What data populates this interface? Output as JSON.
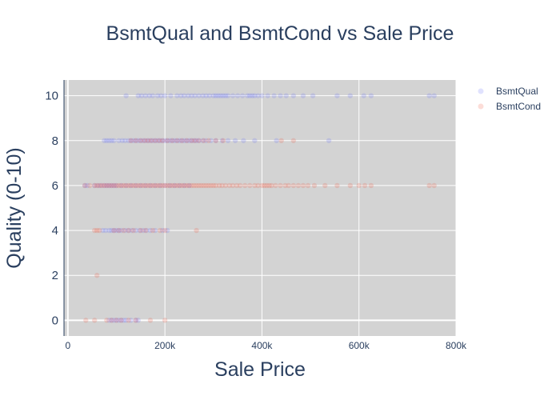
{
  "chart_data": {
    "type": "scatter",
    "title": "BsmtQual and BsmtCond vs Sale Price",
    "xlabel": "Sale Price",
    "ylabel": "Quality (0-10)",
    "xlim": [
      -8000,
      800000
    ],
    "ylim": [
      -0.7,
      10.7
    ],
    "x_ticks": [
      0,
      200000,
      400000,
      600000,
      800000
    ],
    "x_tick_labels": [
      "0",
      "200k",
      "400k",
      "600k",
      "800k"
    ],
    "y_ticks": [
      0,
      2,
      4,
      6,
      8,
      10
    ],
    "y_tick_labels": [
      "0",
      "2",
      "4",
      "6",
      "8",
      "10"
    ],
    "grid": true,
    "plot_background": "#d3d3d3",
    "legend_position": "top-right",
    "series": [
      {
        "name": "BsmtQual",
        "color": "#636efa",
        "opacity": 0.2,
        "points": [
          [
            120000,
            10
          ],
          [
            145000,
            10
          ],
          [
            152000,
            10
          ],
          [
            160000,
            10
          ],
          [
            168000,
            10
          ],
          [
            175000,
            10
          ],
          [
            185000,
            10
          ],
          [
            192000,
            10
          ],
          [
            200000,
            10
          ],
          [
            212000,
            10
          ],
          [
            225000,
            10
          ],
          [
            233000,
            10
          ],
          [
            240000,
            10
          ],
          [
            248000,
            10
          ],
          [
            255000,
            10
          ],
          [
            262000,
            10
          ],
          [
            270000,
            10
          ],
          [
            278000,
            10
          ],
          [
            285000,
            10
          ],
          [
            292000,
            10
          ],
          [
            300000,
            10
          ],
          [
            305000,
            10
          ],
          [
            310000,
            10
          ],
          [
            315000,
            10
          ],
          [
            320000,
            10
          ],
          [
            325000,
            10
          ],
          [
            330000,
            10
          ],
          [
            340000,
            10
          ],
          [
            350000,
            10
          ],
          [
            360000,
            10
          ],
          [
            370000,
            10
          ],
          [
            375000,
            10
          ],
          [
            380000,
            10
          ],
          [
            385000,
            10
          ],
          [
            392000,
            10
          ],
          [
            400000,
            10
          ],
          [
            412000,
            10
          ],
          [
            425000,
            10
          ],
          [
            438000,
            10
          ],
          [
            450000,
            10
          ],
          [
            465000,
            10
          ],
          [
            485000,
            10
          ],
          [
            505000,
            10
          ],
          [
            555000,
            10
          ],
          [
            582000,
            10
          ],
          [
            610000,
            10
          ],
          [
            625000,
            10
          ],
          [
            745000,
            10
          ],
          [
            755000,
            10
          ],
          [
            75000,
            8
          ],
          [
            80000,
            8
          ],
          [
            85000,
            8
          ],
          [
            90000,
            8
          ],
          [
            95000,
            8
          ],
          [
            105000,
            8
          ],
          [
            112000,
            8
          ],
          [
            118000,
            8
          ],
          [
            125000,
            8
          ],
          [
            130000,
            8
          ],
          [
            135000,
            8
          ],
          [
            140000,
            8
          ],
          [
            145000,
            8
          ],
          [
            150000,
            8
          ],
          [
            155000,
            8
          ],
          [
            160000,
            8
          ],
          [
            165000,
            8
          ],
          [
            170000,
            8
          ],
          [
            175000,
            8
          ],
          [
            180000,
            8
          ],
          [
            185000,
            8
          ],
          [
            190000,
            8
          ],
          [
            195000,
            8
          ],
          [
            200000,
            8
          ],
          [
            205000,
            8
          ],
          [
            210000,
            8
          ],
          [
            215000,
            8
          ],
          [
            220000,
            8
          ],
          [
            225000,
            8
          ],
          [
            230000,
            8
          ],
          [
            235000,
            8
          ],
          [
            240000,
            8
          ],
          [
            245000,
            8
          ],
          [
            250000,
            8
          ],
          [
            255000,
            8
          ],
          [
            260000,
            8
          ],
          [
            265000,
            8
          ],
          [
            270000,
            8
          ],
          [
            278000,
            8
          ],
          [
            285000,
            8
          ],
          [
            295000,
            8
          ],
          [
            305000,
            8
          ],
          [
            318000,
            8
          ],
          [
            330000,
            8
          ],
          [
            345000,
            8
          ],
          [
            362000,
            8
          ],
          [
            385000,
            8
          ],
          [
            430000,
            8
          ],
          [
            538000,
            8
          ],
          [
            35000,
            6
          ],
          [
            40000,
            6
          ],
          [
            55000,
            6
          ],
          [
            62000,
            6
          ],
          [
            68000,
            6
          ],
          [
            75000,
            6
          ],
          [
            80000,
            6
          ],
          [
            85000,
            6
          ],
          [
            90000,
            6
          ],
          [
            95000,
            6
          ],
          [
            100000,
            6
          ],
          [
            110000,
            6
          ],
          [
            120000,
            6
          ],
          [
            130000,
            6
          ],
          [
            140000,
            6
          ],
          [
            150000,
            6
          ],
          [
            160000,
            6
          ],
          [
            170000,
            6
          ],
          [
            180000,
            6
          ],
          [
            190000,
            6
          ],
          [
            200000,
            6
          ],
          [
            210000,
            6
          ],
          [
            220000,
            6
          ],
          [
            230000,
            6
          ],
          [
            240000,
            6
          ],
          [
            250000,
            6
          ],
          [
            72000,
            4
          ],
          [
            78000,
            4
          ],
          [
            85000,
            4
          ],
          [
            90000,
            4
          ],
          [
            95000,
            4
          ],
          [
            100000,
            4
          ],
          [
            105000,
            4
          ],
          [
            110000,
            4
          ],
          [
            118000,
            4
          ],
          [
            125000,
            4
          ],
          [
            132000,
            4
          ],
          [
            140000,
            4
          ],
          [
            148000,
            4
          ],
          [
            155000,
            4
          ],
          [
            162000,
            4
          ],
          [
            170000,
            4
          ],
          [
            180000,
            4
          ],
          [
            195000,
            4
          ],
          [
            205000,
            4
          ],
          [
            85000,
            0
          ],
          [
            90000,
            0
          ],
          [
            95000,
            0
          ],
          [
            100000,
            0
          ],
          [
            105000,
            0
          ],
          [
            110000,
            0
          ],
          [
            115000,
            0
          ],
          [
            120000,
            0
          ],
          [
            130000,
            0
          ],
          [
            140000,
            0
          ],
          [
            145000,
            0
          ]
        ]
      },
      {
        "name": "BsmtCond",
        "color": "#ef553b",
        "opacity": 0.2,
        "points": [
          [
            130000,
            8
          ],
          [
            140000,
            8
          ],
          [
            150000,
            8
          ],
          [
            158000,
            8
          ],
          [
            165000,
            8
          ],
          [
            172000,
            8
          ],
          [
            180000,
            8
          ],
          [
            188000,
            8
          ],
          [
            195000,
            8
          ],
          [
            205000,
            8
          ],
          [
            215000,
            8
          ],
          [
            225000,
            8
          ],
          [
            235000,
            8
          ],
          [
            245000,
            8
          ],
          [
            255000,
            8
          ],
          [
            262000,
            8
          ],
          [
            270000,
            8
          ],
          [
            280000,
            8
          ],
          [
            290000,
            8
          ],
          [
            305000,
            8
          ],
          [
            320000,
            8
          ],
          [
            440000,
            8
          ],
          [
            465000,
            8
          ],
          [
            35000,
            6
          ],
          [
            45000,
            6
          ],
          [
            55000,
            6
          ],
          [
            60000,
            6
          ],
          [
            65000,
            6
          ],
          [
            70000,
            6
          ],
          [
            75000,
            6
          ],
          [
            80000,
            6
          ],
          [
            85000,
            6
          ],
          [
            90000,
            6
          ],
          [
            95000,
            6
          ],
          [
            100000,
            6
          ],
          [
            105000,
            6
          ],
          [
            110000,
            6
          ],
          [
            115000,
            6
          ],
          [
            120000,
            6
          ],
          [
            125000,
            6
          ],
          [
            130000,
            6
          ],
          [
            135000,
            6
          ],
          [
            140000,
            6
          ],
          [
            145000,
            6
          ],
          [
            150000,
            6
          ],
          [
            155000,
            6
          ],
          [
            160000,
            6
          ],
          [
            165000,
            6
          ],
          [
            170000,
            6
          ],
          [
            175000,
            6
          ],
          [
            180000,
            6
          ],
          [
            185000,
            6
          ],
          [
            190000,
            6
          ],
          [
            195000,
            6
          ],
          [
            200000,
            6
          ],
          [
            205000,
            6
          ],
          [
            210000,
            6
          ],
          [
            215000,
            6
          ],
          [
            220000,
            6
          ],
          [
            225000,
            6
          ],
          [
            230000,
            6
          ],
          [
            235000,
            6
          ],
          [
            240000,
            6
          ],
          [
            245000,
            6
          ],
          [
            250000,
            6
          ],
          [
            255000,
            6
          ],
          [
            260000,
            6
          ],
          [
            265000,
            6
          ],
          [
            270000,
            6
          ],
          [
            275000,
            6
          ],
          [
            280000,
            6
          ],
          [
            285000,
            6
          ],
          [
            290000,
            6
          ],
          [
            295000,
            6
          ],
          [
            300000,
            6
          ],
          [
            305000,
            6
          ],
          [
            312000,
            6
          ],
          [
            318000,
            6
          ],
          [
            325000,
            6
          ],
          [
            333000,
            6
          ],
          [
            340000,
            6
          ],
          [
            348000,
            6
          ],
          [
            355000,
            6
          ],
          [
            365000,
            6
          ],
          [
            375000,
            6
          ],
          [
            385000,
            6
          ],
          [
            392000,
            6
          ],
          [
            400000,
            6
          ],
          [
            405000,
            6
          ],
          [
            410000,
            6
          ],
          [
            415000,
            6
          ],
          [
            420000,
            6
          ],
          [
            428000,
            6
          ],
          [
            438000,
            6
          ],
          [
            448000,
            6
          ],
          [
            455000,
            6
          ],
          [
            465000,
            6
          ],
          [
            475000,
            6
          ],
          [
            485000,
            6
          ],
          [
            495000,
            6
          ],
          [
            508000,
            6
          ],
          [
            530000,
            6
          ],
          [
            555000,
            6
          ],
          [
            582000,
            6
          ],
          [
            600000,
            6
          ],
          [
            612000,
            6
          ],
          [
            625000,
            6
          ],
          [
            745000,
            6
          ],
          [
            755000,
            6
          ],
          [
            55000,
            4
          ],
          [
            60000,
            4
          ],
          [
            65000,
            4
          ],
          [
            95000,
            4
          ],
          [
            105000,
            4
          ],
          [
            115000,
            4
          ],
          [
            125000,
            4
          ],
          [
            135000,
            4
          ],
          [
            150000,
            4
          ],
          [
            160000,
            4
          ],
          [
            175000,
            4
          ],
          [
            190000,
            4
          ],
          [
            200000,
            4
          ],
          [
            265000,
            4
          ],
          [
            60000,
            2
          ],
          [
            37000,
            0
          ],
          [
            55000,
            0
          ],
          [
            80000,
            0
          ],
          [
            90000,
            0
          ],
          [
            100000,
            0
          ],
          [
            110000,
            0
          ],
          [
            125000,
            0
          ],
          [
            140000,
            0
          ],
          [
            170000,
            0
          ],
          [
            200000,
            0
          ]
        ]
      }
    ]
  }
}
